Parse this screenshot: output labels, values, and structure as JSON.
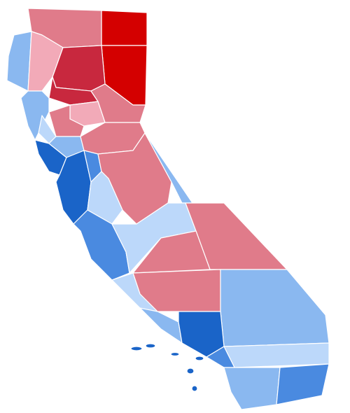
{
  "map": {
    "colors": [
      "#d40000",
      "#c8283e",
      "#e07b8a",
      "#f2aab8",
      "#1a64c8",
      "#4a8ae0",
      "#8ab8f0",
      "#bcd8fa"
    ]
  }
}
